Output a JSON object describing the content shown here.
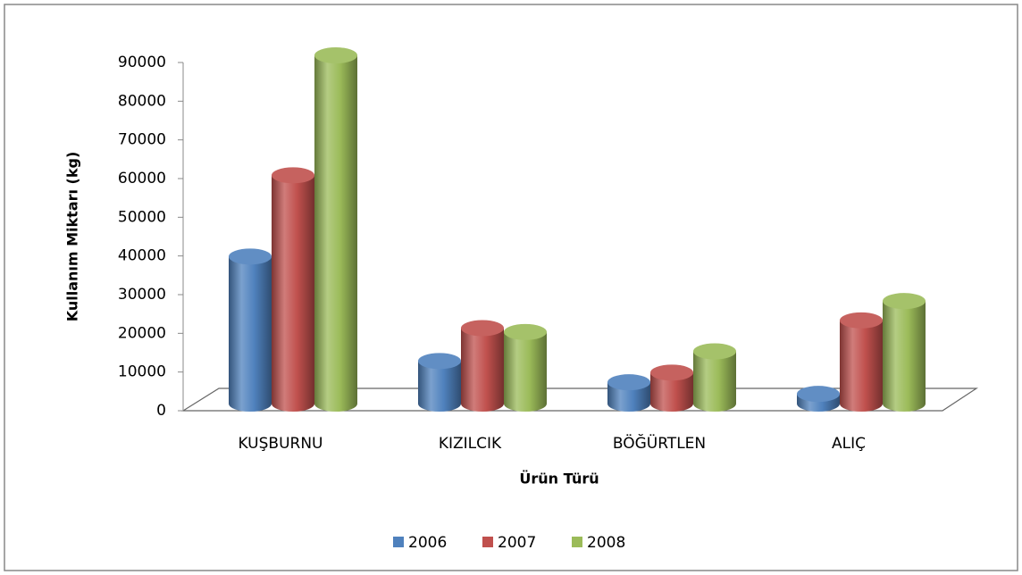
{
  "chart_data": {
    "type": "bar3d",
    "x_label": "Ürün Türü",
    "y_label": "Kullanım Miktarı (kg)",
    "categories": [
      "KUŞBURNU",
      "KIZILCIK",
      "BÖĞÜRTLEN",
      "ALIÇ"
    ],
    "series": [
      {
        "name": "2006",
        "color": "#4f81bd",
        "values": [
          38000,
          11000,
          5500,
          2500
        ]
      },
      {
        "name": "2007",
        "color": "#c0504d",
        "values": [
          59000,
          19500,
          8000,
          21500
        ]
      },
      {
        "name": "2008",
        "color": "#9bbb59",
        "values": [
          90000,
          18500,
          13500,
          26500
        ]
      }
    ],
    "ylim": [
      0,
      90000
    ],
    "yticks": [
      0,
      10000,
      20000,
      30000,
      40000,
      50000,
      60000,
      70000,
      80000,
      90000
    ],
    "legend": "bottom"
  }
}
